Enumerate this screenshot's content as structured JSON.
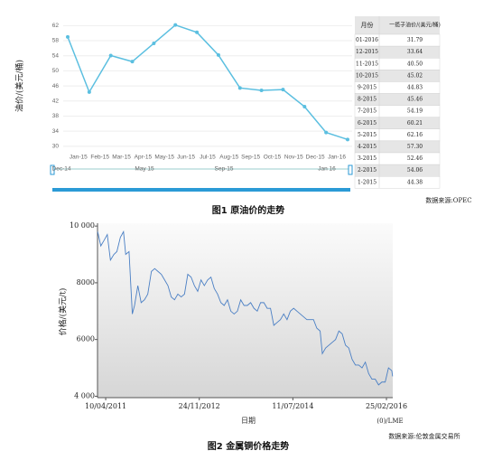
{
  "figure1": {
    "chart_data": {
      "type": "line",
      "ylabel": "油价/(美元/桶)",
      "categories": [
        null,
        "Jan-15",
        "Feb-15",
        "Mar-15",
        "Apr-15",
        "May-15",
        "Jun-15",
        "Jul-15",
        "Aug-15",
        "Sep-15",
        "Oct-15",
        "Nov-15",
        "Dec-15",
        "Jan-16"
      ],
      "series": [
        {
          "name": "一揽子油价",
          "color": "#5bbfe0",
          "values": [
            59,
            44.38,
            54.06,
            52.46,
            57.3,
            62.16,
            60.21,
            54.19,
            45.46,
            44.83,
            45.02,
            40.5,
            33.64,
            31.79
          ]
        }
      ],
      "ylim": [
        29,
        64
      ],
      "yticks": [
        30,
        34,
        38,
        42,
        46,
        50,
        54,
        58,
        62
      ],
      "grid": true
    },
    "navigator": {
      "labels": [
        "Dec-14",
        "May 15",
        "Sep-15",
        "Jan 16"
      ]
    },
    "table": {
      "header": [
        "月份",
        "一揽子油价/(美元/桶)"
      ],
      "rows": [
        [
          "01-2016",
          "31.79"
        ],
        [
          "12-2015",
          "33.64"
        ],
        [
          "11-2015",
          "40.50"
        ],
        [
          "10-2015",
          "45.02"
        ],
        [
          "9-2015",
          "44.83"
        ],
        [
          "8-2015",
          "45.46"
        ],
        [
          "7-2015",
          "54.19"
        ],
        [
          "6-2015",
          "60.21"
        ],
        [
          "5-2015",
          "62.16"
        ],
        [
          "4-2015",
          "57.30"
        ],
        [
          "3-2015",
          "52.46"
        ],
        [
          "2-2015",
          "54.06"
        ],
        [
          "1-2015",
          "44.38"
        ]
      ]
    },
    "source": "数据来源:OPEC",
    "caption": "图1  原油价的走势"
  },
  "figure2": {
    "chart_data": {
      "type": "line",
      "ylabel": "价格/(美元/t)",
      "xlabel": "日期",
      "x": [
        "18/02/2011",
        "10/03/2011",
        "31/03/2011",
        "20/04/2011",
        "10/05/2011",
        "01/06/2011",
        "20/06/2011",
        "12/07/2011",
        "01/08/2011",
        "15/08/2011",
        "05/09/2011",
        "26/09/2011",
        "10/10/2011",
        "31/10/2011",
        "21/11/2011",
        "12/12/2011",
        "02/01/2012",
        "25/01/2012",
        "15/02/2012",
        "07/03/2012",
        "28/03/2012",
        "18/04/2012",
        "09/05/2012",
        "30/05/2012",
        "20/06/2012",
        "11/07/2012",
        "01/08/2012",
        "22/08/2012",
        "12/09/2012",
        "03/10/2012",
        "24/10/2012",
        "14/11/2012",
        "05/12/2012",
        "26/12/2012",
        "16/01/2013",
        "06/02/2013",
        "27/02/2013",
        "20/03/2013",
        "10/04/2013",
        "01/05/2013",
        "22/05/2013",
        "12/06/2013",
        "03/07/2013",
        "24/07/2013",
        "14/08/2013",
        "04/09/2013",
        "25/09/2013",
        "16/10/2013",
        "06/11/2013",
        "27/11/2013",
        "18/12/2013",
        "08/01/2014",
        "29/01/2014",
        "19/02/2014",
        "12/03/2014",
        "02/04/2014",
        "23/04/2014",
        "14/05/2014",
        "04/06/2014",
        "25/06/2014",
        "16/07/2014",
        "06/08/2014",
        "27/08/2014",
        "17/09/2014",
        "08/10/2014",
        "29/10/2014",
        "19/11/2014",
        "10/12/2014",
        "31/12/2014",
        "14/01/2015",
        "04/02/2015",
        "25/02/2015",
        "18/03/2015",
        "08/04/2015",
        "29/04/2015",
        "20/05/2015",
        "10/06/2015",
        "01/07/2015",
        "22/07/2015",
        "12/08/2015",
        "02/09/2015",
        "23/09/2015",
        "14/10/2015",
        "04/11/2015",
        "25/11/2015",
        "16/12/2015",
        "06/01/2016",
        "27/01/2016",
        "17/02/2016",
        "09/03/2016",
        "30/03/2016",
        "04/04/2016"
      ],
      "series": [
        {
          "name": "铜价",
          "color": "#4a7fc4",
          "values": [
            9800,
            9300,
            9500,
            9700,
            8800,
            9000,
            9100,
            9600,
            9800,
            9000,
            9100,
            6900,
            7200,
            7900,
            7300,
            7400,
            7600,
            8400,
            8500,
            8400,
            8300,
            8100,
            7900,
            7500,
            7400,
            7600,
            7500,
            7600,
            8300,
            8200,
            7900,
            7700,
            8100,
            7900,
            8100,
            8200,
            7800,
            7600,
            7300,
            7200,
            7400,
            7000,
            6900,
            7000,
            7400,
            7200,
            7200,
            7300,
            7100,
            7000,
            7300,
            7300,
            7100,
            7100,
            6500,
            6600,
            6700,
            6900,
            6700,
            7000,
            7100,
            7000,
            6900,
            6800,
            6700,
            6700,
            6700,
            6400,
            6300,
            5500,
            5700,
            5800,
            5900,
            6000,
            6300,
            6200,
            5800,
            5700,
            5300,
            5100,
            5100,
            5000,
            5200,
            4800,
            4600,
            4600,
            4400,
            4500,
            4500,
            5000,
            4900,
            4700
          ]
        }
      ],
      "xlim": [
        "17/02/2011",
        "05/04/2016"
      ],
      "xticks": [
        "10/04/2011",
        "24/11/2012",
        "11/07/2014",
        "25/02/2016"
      ],
      "ylim": [
        3950,
        10100
      ],
      "yticks": [
        {
          "value": 4000,
          "label": "4 000"
        },
        6000,
        8000,
        {
          "value": 10000,
          "label": "10 000"
        }
      ]
    },
    "unit_note": "(0)/LME",
    "source": "数据来源:伦敦金属交易所",
    "caption": "图2  金属铜价格走势"
  }
}
